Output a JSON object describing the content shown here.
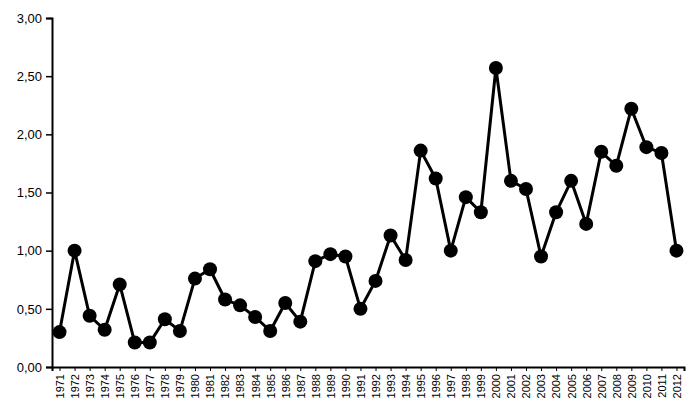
{
  "chart_data": {
    "type": "line",
    "categories": [
      "1971",
      "1972",
      "1973",
      "1974",
      "1975",
      "1976",
      "1977",
      "1978",
      "1979",
      "1980",
      "1981",
      "1982",
      "1983",
      "1984",
      "1985",
      "1986",
      "1987",
      "1988",
      "1989",
      "1990",
      "1991",
      "1992",
      "1993",
      "1994",
      "1995",
      "1996",
      "1997",
      "1998",
      "1999",
      "2000",
      "2001",
      "2002",
      "2003",
      "2004",
      "2005",
      "2006",
      "2007",
      "2008",
      "2009",
      "2010",
      "2011",
      "2012"
    ],
    "values": [
      0.3,
      1.0,
      0.44,
      0.32,
      0.71,
      0.21,
      0.21,
      0.41,
      0.31,
      0.76,
      0.84,
      0.58,
      0.53,
      0.43,
      0.31,
      0.55,
      0.39,
      0.91,
      0.97,
      0.95,
      0.5,
      0.74,
      1.13,
      0.92,
      1.86,
      1.62,
      1.0,
      1.46,
      1.33,
      2.57,
      1.6,
      1.53,
      0.95,
      1.33,
      1.6,
      1.23,
      1.85,
      1.73,
      2.22,
      1.89,
      1.84,
      1.0
    ],
    "color": "#000000",
    "marker": "circle",
    "ylim": [
      0,
      3
    ],
    "yticks": [
      {
        "value": 0,
        "label": "0,00"
      },
      {
        "value": 0.5,
        "label": "0,50"
      },
      {
        "value": 1,
        "label": "1,00"
      },
      {
        "value": 1.5,
        "label": "1,50"
      },
      {
        "value": 2,
        "label": "2,00"
      },
      {
        "value": 2.5,
        "label": "2,50"
      },
      {
        "value": 3,
        "label": "3,00"
      }
    ],
    "grid": false
  }
}
